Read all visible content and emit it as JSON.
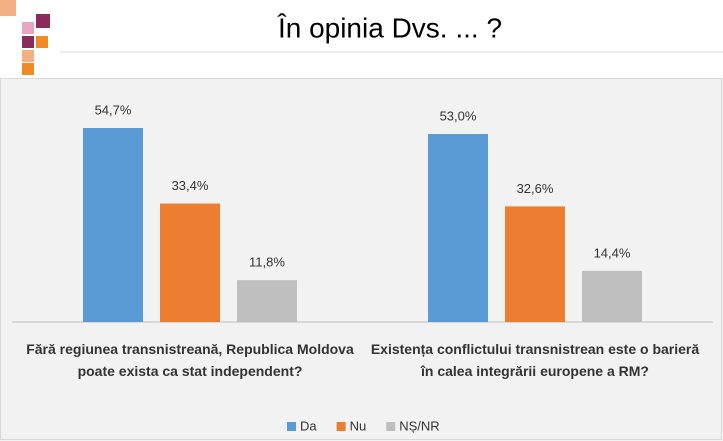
{
  "chart_data": {
    "type": "bar",
    "title": "În opinia Dvs. ... ?",
    "categories": [
      "Fără regiunea transnistreană, Republica Moldova poate exista ca stat independent?",
      "Existența conflictului transnistrean este o barieră în calea integrării europene a RM?"
    ],
    "series": [
      {
        "name": "Da",
        "color": "#5b9bd5",
        "values": [
          54.7,
          53.0
        ],
        "value_labels": [
          "54,7%",
          "53,0%"
        ]
      },
      {
        "name": "Nu",
        "color": "#ed7d31",
        "values": [
          33.4,
          32.6
        ],
        "value_labels": [
          "33,4%",
          "32,6%"
        ]
      },
      {
        "name": "NȘ/NR",
        "color": "#bfbfbf",
        "values": [
          11.8,
          14.4
        ],
        "value_labels": [
          "11,8%",
          "14,4%"
        ]
      }
    ]
  }
}
